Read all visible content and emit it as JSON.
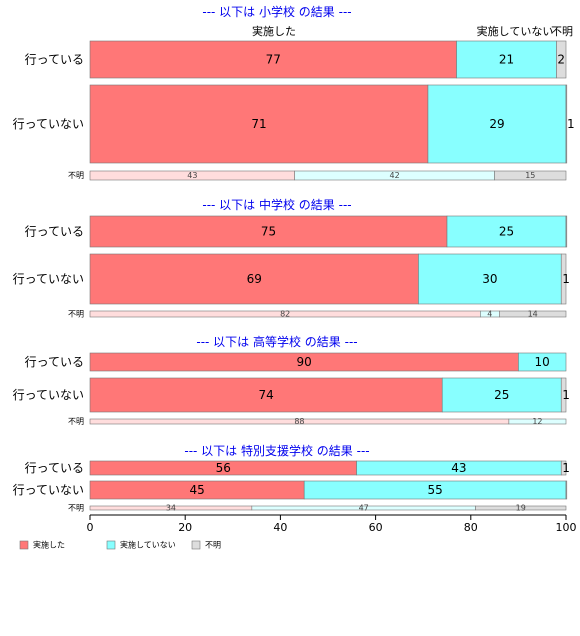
{
  "chart_data": {
    "type": "bar",
    "orientation": "horizontal",
    "stacked": true,
    "xlim": [
      0,
      100
    ],
    "x_ticks": [
      "0",
      "20",
      "40",
      "60",
      "80",
      "100"
    ],
    "grid": false,
    "legend_position": "bottom-left",
    "top_column_labels": [
      "実施した",
      "実施していない",
      "不明"
    ],
    "legend": [
      "実施した",
      "実施していない",
      "不明"
    ],
    "colors": {
      "done": "#ff7777",
      "notdone": "#88ffff",
      "unknown": "#dddddd",
      "title": "#0000ee"
    },
    "panels": [
      {
        "title": "--- 以下は 小学校 の結果 ---",
        "rows": [
          {
            "label": "行っている",
            "values": [
              77,
              21,
              2
            ],
            "value_labels": [
              "77",
              "21",
              "2"
            ]
          },
          {
            "label": "行っていない",
            "values": [
              71,
              29,
              1
            ],
            "value_labels": [
              "71",
              "29",
              "1"
            ]
          },
          {
            "label": "不明",
            "small": true,
            "values": [
              43,
              42,
              15
            ],
            "value_labels": [
              "43",
              "42",
              "15"
            ]
          }
        ]
      },
      {
        "title": "--- 以下は 中学校 の結果 ---",
        "rows": [
          {
            "label": "行っている",
            "values": [
              75,
              25,
              0.5
            ],
            "value_labels": [
              "75",
              "25",
              ""
            ]
          },
          {
            "label": "行っていない",
            "values": [
              69,
              30,
              1
            ],
            "value_labels": [
              "69",
              "30",
              "1"
            ]
          },
          {
            "label": "不明",
            "small": true,
            "values": [
              82,
              4,
              14
            ],
            "value_labels": [
              "82",
              "4",
              "14"
            ]
          }
        ]
      },
      {
        "title": "--- 以下は 高等学校 の結果 ---",
        "rows": [
          {
            "label": "行っている",
            "values": [
              90,
              10,
              0
            ],
            "value_labels": [
              "90",
              "10",
              ""
            ]
          },
          {
            "label": "行っていない",
            "values": [
              74,
              25,
              1
            ],
            "value_labels": [
              "74",
              "25",
              "1"
            ]
          },
          {
            "label": "不明",
            "small": true,
            "values": [
              88,
              12,
              0
            ],
            "value_labels": [
              "88",
              "12",
              ""
            ]
          }
        ]
      },
      {
        "title": "--- 以下は 特別支援学校 の結果 ---",
        "rows": [
          {
            "label": "行っている",
            "values": [
              56,
              43,
              1
            ],
            "value_labels": [
              "56",
              "43",
              "1"
            ]
          },
          {
            "label": "行っていない",
            "values": [
              45,
              55,
              0.5
            ],
            "value_labels": [
              "45",
              "55",
              ""
            ]
          },
          {
            "label": "不明",
            "small": true,
            "values": [
              34,
              47,
              19
            ],
            "value_labels": [
              "34",
              "47",
              "19"
            ]
          }
        ]
      }
    ]
  }
}
